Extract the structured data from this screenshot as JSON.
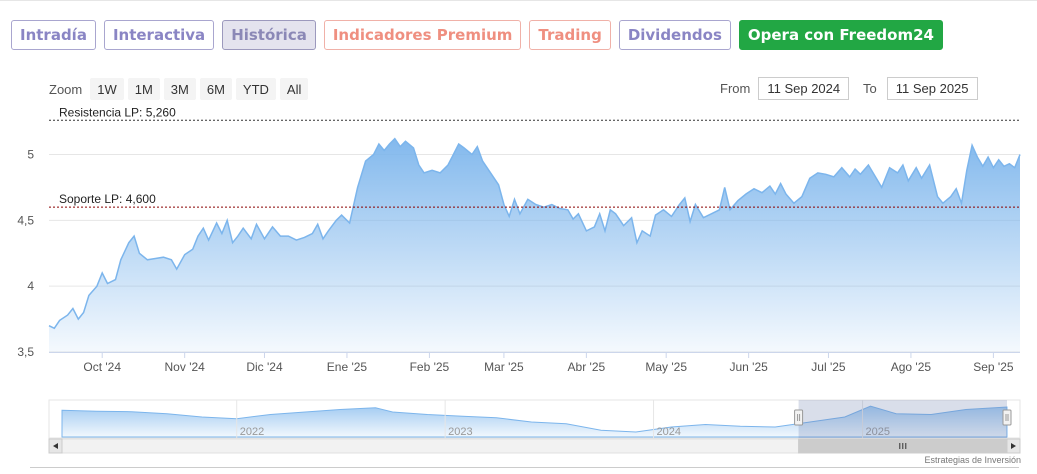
{
  "tabs": [
    {
      "label": "Intradía",
      "style": "default"
    },
    {
      "label": "Interactiva",
      "style": "default"
    },
    {
      "label": "Histórica",
      "style": "active"
    },
    {
      "label": "Indicadores Premium",
      "style": "warm"
    },
    {
      "label": "Trading",
      "style": "warm"
    },
    {
      "label": "Dividendos",
      "style": "default"
    },
    {
      "label": "Opera con Freedom24",
      "style": "green"
    }
  ],
  "zoom": {
    "label": "Zoom",
    "buttons": [
      "1W",
      "1M",
      "3M",
      "6M",
      "YTD",
      "All"
    ]
  },
  "range": {
    "from_label": "From",
    "from_value": "11 Sep 2024",
    "to_label": "To",
    "to_value": "11 Sep 2025"
  },
  "footer": "Estrategias de Inversión",
  "colors": {
    "line": "#7cb5ec",
    "resistance": "#333333",
    "support": "#8b0000"
  },
  "chart_data": {
    "type": "area",
    "title": "",
    "xlabel": "",
    "ylabel": "",
    "ylim": [
      3.5,
      5.3
    ],
    "y_ticks": [
      3.5,
      4,
      4.5,
      5
    ],
    "y_tick_labels": [
      "3,5",
      "4",
      "4,5",
      "5"
    ],
    "x_range": [
      "2024-09-11",
      "2025-09-11"
    ],
    "x_ticks": [
      {
        "date": "2024-10-01",
        "label": "Oct '24"
      },
      {
        "date": "2024-11-01",
        "label": "Nov '24"
      },
      {
        "date": "2024-12-01",
        "label": "Dic '24"
      },
      {
        "date": "2025-01-01",
        "label": "Ene '25"
      },
      {
        "date": "2025-02-01",
        "label": "Feb '25"
      },
      {
        "date": "2025-03-01",
        "label": "Mar '25"
      },
      {
        "date": "2025-04-01",
        "label": "Abr '25"
      },
      {
        "date": "2025-05-01",
        "label": "May '25"
      },
      {
        "date": "2025-06-01",
        "label": "Jun '25"
      },
      {
        "date": "2025-07-01",
        "label": "Jul '25"
      },
      {
        "date": "2025-08-01",
        "label": "Ago '25"
      },
      {
        "date": "2025-09-01",
        "label": "Sep '25"
      }
    ],
    "plot_lines": [
      {
        "label": "Resistencia LP: 5,260",
        "value": 5.26,
        "kind": "resistance"
      },
      {
        "label": "Soporte LP: 4,600",
        "value": 4.6,
        "kind": "support"
      }
    ],
    "series": [
      {
        "points": [
          [
            "2024-09-11",
            3.7
          ],
          [
            "2024-09-13",
            3.68
          ],
          [
            "2024-09-15",
            3.74
          ],
          [
            "2024-09-18",
            3.78
          ],
          [
            "2024-09-20",
            3.83
          ],
          [
            "2024-09-22",
            3.75
          ],
          [
            "2024-09-24",
            3.8
          ],
          [
            "2024-09-26",
            3.93
          ],
          [
            "2024-09-29",
            4.0
          ],
          [
            "2024-10-01",
            4.1
          ],
          [
            "2024-10-03",
            4.02
          ],
          [
            "2024-10-06",
            4.05
          ],
          [
            "2024-10-08",
            4.2
          ],
          [
            "2024-10-11",
            4.33
          ],
          [
            "2024-10-13",
            4.38
          ],
          [
            "2024-10-15",
            4.25
          ],
          [
            "2024-10-18",
            4.2
          ],
          [
            "2024-10-21",
            4.21
          ],
          [
            "2024-10-24",
            4.22
          ],
          [
            "2024-10-27",
            4.2
          ],
          [
            "2024-10-29",
            4.13
          ],
          [
            "2024-11-01",
            4.24
          ],
          [
            "2024-11-04",
            4.28
          ],
          [
            "2024-11-06",
            4.38
          ],
          [
            "2024-11-08",
            4.44
          ],
          [
            "2024-11-10",
            4.35
          ],
          [
            "2024-11-13",
            4.48
          ],
          [
            "2024-11-15",
            4.4
          ],
          [
            "2024-11-17",
            4.5
          ],
          [
            "2024-11-19",
            4.33
          ],
          [
            "2024-11-21",
            4.38
          ],
          [
            "2024-11-23",
            4.44
          ],
          [
            "2024-11-26",
            4.36
          ],
          [
            "2024-11-28",
            4.47
          ],
          [
            "2024-12-01",
            4.36
          ],
          [
            "2024-12-04",
            4.45
          ],
          [
            "2024-12-07",
            4.38
          ],
          [
            "2024-12-10",
            4.38
          ],
          [
            "2024-12-13",
            4.35
          ],
          [
            "2024-12-16",
            4.37
          ],
          [
            "2024-12-19",
            4.4
          ],
          [
            "2024-12-21",
            4.47
          ],
          [
            "2024-12-23",
            4.36
          ],
          [
            "2024-12-25",
            4.42
          ],
          [
            "2024-12-28",
            4.5
          ],
          [
            "2024-12-30",
            4.54
          ],
          [
            "2025-01-02",
            4.48
          ],
          [
            "2025-01-05",
            4.75
          ],
          [
            "2025-01-08",
            4.95
          ],
          [
            "2025-01-11",
            5.0
          ],
          [
            "2025-01-13",
            5.08
          ],
          [
            "2025-01-15",
            5.03
          ],
          [
            "2025-01-17",
            5.08
          ],
          [
            "2025-01-19",
            5.12
          ],
          [
            "2025-01-21",
            5.06
          ],
          [
            "2025-01-23",
            5.1
          ],
          [
            "2025-01-26",
            5.05
          ],
          [
            "2025-01-28",
            4.92
          ],
          [
            "2025-01-30",
            4.86
          ],
          [
            "2025-02-02",
            4.88
          ],
          [
            "2025-02-05",
            4.86
          ],
          [
            "2025-02-08",
            4.92
          ],
          [
            "2025-02-10",
            5.0
          ],
          [
            "2025-02-12",
            5.08
          ],
          [
            "2025-02-14",
            5.05
          ],
          [
            "2025-02-17",
            5.0
          ],
          [
            "2025-02-19",
            5.06
          ],
          [
            "2025-02-21",
            4.95
          ],
          [
            "2025-02-24",
            4.86
          ],
          [
            "2025-02-27",
            4.77
          ],
          [
            "2025-03-01",
            4.62
          ],
          [
            "2025-03-03",
            4.53
          ],
          [
            "2025-03-05",
            4.66
          ],
          [
            "2025-03-07",
            4.55
          ],
          [
            "2025-03-10",
            4.66
          ],
          [
            "2025-03-13",
            4.62
          ],
          [
            "2025-03-16",
            4.6
          ],
          [
            "2025-03-19",
            4.62
          ],
          [
            "2025-03-22",
            4.59
          ],
          [
            "2025-03-25",
            4.58
          ],
          [
            "2025-03-27",
            4.51
          ],
          [
            "2025-03-29",
            4.55
          ],
          [
            "2025-04-01",
            4.42
          ],
          [
            "2025-04-04",
            4.45
          ],
          [
            "2025-04-06",
            4.55
          ],
          [
            "2025-04-08",
            4.42
          ],
          [
            "2025-04-10",
            4.58
          ],
          [
            "2025-04-12",
            4.55
          ],
          [
            "2025-04-15",
            4.46
          ],
          [
            "2025-04-18",
            4.52
          ],
          [
            "2025-04-20",
            4.33
          ],
          [
            "2025-04-22",
            4.42
          ],
          [
            "2025-04-25",
            4.38
          ],
          [
            "2025-04-27",
            4.54
          ],
          [
            "2025-04-30",
            4.58
          ],
          [
            "2025-05-03",
            4.53
          ],
          [
            "2025-05-06",
            4.62
          ],
          [
            "2025-05-08",
            4.67
          ],
          [
            "2025-05-10",
            4.49
          ],
          [
            "2025-05-12",
            4.62
          ],
          [
            "2025-05-15",
            4.52
          ],
          [
            "2025-05-18",
            4.55
          ],
          [
            "2025-05-21",
            4.58
          ],
          [
            "2025-05-23",
            4.75
          ],
          [
            "2025-05-25",
            4.58
          ],
          [
            "2025-05-28",
            4.65
          ],
          [
            "2025-05-31",
            4.7
          ],
          [
            "2025-06-03",
            4.74
          ],
          [
            "2025-06-06",
            4.71
          ],
          [
            "2025-06-09",
            4.76
          ],
          [
            "2025-06-11",
            4.7
          ],
          [
            "2025-06-13",
            4.78
          ],
          [
            "2025-06-15",
            4.7
          ],
          [
            "2025-06-18",
            4.63
          ],
          [
            "2025-06-21",
            4.68
          ],
          [
            "2025-06-24",
            4.82
          ],
          [
            "2025-06-27",
            4.86
          ],
          [
            "2025-06-30",
            4.85
          ],
          [
            "2025-07-03",
            4.83
          ],
          [
            "2025-07-06",
            4.9
          ],
          [
            "2025-07-09",
            4.83
          ],
          [
            "2025-07-11",
            4.89
          ],
          [
            "2025-07-13",
            4.85
          ],
          [
            "2025-07-16",
            4.92
          ],
          [
            "2025-07-19",
            4.82
          ],
          [
            "2025-07-21",
            4.75
          ],
          [
            "2025-07-24",
            4.9
          ],
          [
            "2025-07-27",
            4.86
          ],
          [
            "2025-07-29",
            4.92
          ],
          [
            "2025-07-31",
            4.8
          ],
          [
            "2025-08-03",
            4.9
          ],
          [
            "2025-08-05",
            4.82
          ],
          [
            "2025-08-08",
            4.92
          ],
          [
            "2025-08-11",
            4.68
          ],
          [
            "2025-08-13",
            4.63
          ],
          [
            "2025-08-16",
            4.68
          ],
          [
            "2025-08-18",
            4.74
          ],
          [
            "2025-08-20",
            4.63
          ],
          [
            "2025-08-22",
            4.88
          ],
          [
            "2025-08-24",
            5.07
          ],
          [
            "2025-08-26",
            4.98
          ],
          [
            "2025-08-28",
            4.91
          ],
          [
            "2025-08-30",
            4.98
          ],
          [
            "2025-09-01",
            4.9
          ],
          [
            "2025-09-03",
            4.96
          ],
          [
            "2025-09-05",
            4.91
          ],
          [
            "2025-09-07",
            4.93
          ],
          [
            "2025-09-09",
            4.9
          ],
          [
            "2025-09-11",
            5.0
          ]
        ]
      }
    ]
  },
  "navigator": {
    "year_labels": [
      {
        "date": "2022-01-01",
        "label": "2022"
      },
      {
        "date": "2023-01-01",
        "label": "2023"
      },
      {
        "date": "2024-01-01",
        "label": "2024"
      },
      {
        "date": "2025-01-01",
        "label": "2025"
      }
    ],
    "x_range": [
      "2021-03-01",
      "2025-09-11"
    ],
    "ylim": [
      3.2,
      5.3
    ],
    "selection": [
      "2024-09-11",
      "2025-09-11"
    ],
    "points": [
      [
        "2021-03-01",
        4.8
      ],
      [
        "2021-05-01",
        4.75
      ],
      [
        "2021-07-01",
        4.72
      ],
      [
        "2021-09-01",
        4.6
      ],
      [
        "2021-11-01",
        4.4
      ],
      [
        "2022-01-01",
        4.3
      ],
      [
        "2022-03-01",
        4.55
      ],
      [
        "2022-05-01",
        4.7
      ],
      [
        "2022-07-01",
        4.85
      ],
      [
        "2022-09-01",
        4.95
      ],
      [
        "2022-10-01",
        4.7
      ],
      [
        "2022-12-01",
        4.55
      ],
      [
        "2023-02-01",
        4.45
      ],
      [
        "2023-04-01",
        4.35
      ],
      [
        "2023-06-01",
        4.1
      ],
      [
        "2023-08-01",
        4.0
      ],
      [
        "2023-10-01",
        3.6
      ],
      [
        "2023-12-01",
        3.5
      ],
      [
        "2024-02-01",
        3.8
      ],
      [
        "2024-04-01",
        3.95
      ],
      [
        "2024-06-01",
        3.85
      ],
      [
        "2024-08-01",
        3.8
      ],
      [
        "2024-10-01",
        4.1
      ],
      [
        "2024-12-01",
        4.4
      ],
      [
        "2025-01-15",
        5.05
      ],
      [
        "2025-03-01",
        4.6
      ],
      [
        "2025-05-01",
        4.55
      ],
      [
        "2025-07-01",
        4.85
      ],
      [
        "2025-09-11",
        5.0
      ]
    ]
  }
}
